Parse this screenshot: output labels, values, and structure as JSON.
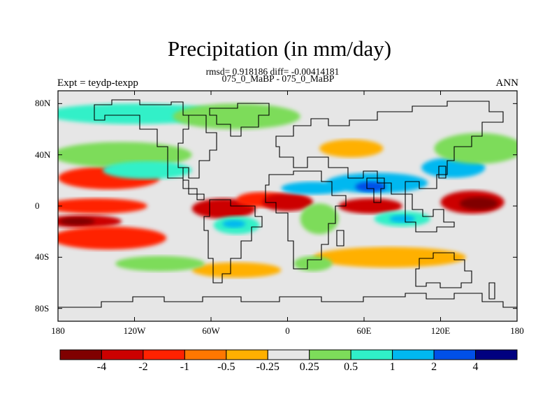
{
  "figure": {
    "title": "Precipitation (in mm/day)",
    "stats_line": "rmsd= 0.918186 diff= -0.00414181",
    "comparison": "075_0_MaBP - 075_0_MaBP",
    "left_label": "Expt = teydp-texpp",
    "right_label": "ANN"
  },
  "map": {
    "lat_ticks": [
      {
        "value": 80,
        "label": "80N"
      },
      {
        "value": 40,
        "label": "40N"
      },
      {
        "value": 0,
        "label": "0"
      },
      {
        "value": -40,
        "label": "40S"
      },
      {
        "value": -80,
        "label": "80S"
      }
    ],
    "lon_ticks": [
      {
        "value": -180,
        "label": "180"
      },
      {
        "value": -120,
        "label": "120W"
      },
      {
        "value": -60,
        "label": "60W"
      },
      {
        "value": 0,
        "label": "0"
      },
      {
        "value": 60,
        "label": "60E"
      },
      {
        "value": 120,
        "label": "120E"
      },
      {
        "value": 180,
        "label": "180"
      }
    ],
    "background_color": "#e6e6e6",
    "fields": [
      {
        "name": "tropical-pacific-wet",
        "lon": -150,
        "lat": 0,
        "rlon": 40,
        "rlat": 6,
        "level": -1
      },
      {
        "name": "tropical-pacific-dry",
        "lon": -160,
        "lat": -12,
        "rlon": 30,
        "rlat": 5,
        "level": -3
      },
      {
        "name": "tropical-pacific-dry-core",
        "lon": -165,
        "lat": -12,
        "rlon": 14,
        "rlat": 3,
        "level": -4
      },
      {
        "name": "south-pacific-orange",
        "lon": -140,
        "lat": -25,
        "rlon": 45,
        "rlat": 9,
        "level": -1
      },
      {
        "name": "north-pacific-orange",
        "lon": -140,
        "lat": 22,
        "rlon": 40,
        "rlat": 9,
        "level": -1
      },
      {
        "name": "north-pacific-green",
        "lon": -130,
        "lat": 40,
        "rlon": 55,
        "rlat": 10,
        "level": 0.3
      },
      {
        "name": "north-pacific-cyan",
        "lon": -110,
        "lat": 28,
        "rlon": 35,
        "rlat": 7,
        "level": 0.7
      },
      {
        "name": "arctic-cyan",
        "lon": -120,
        "lat": 72,
        "rlon": 70,
        "rlat": 8,
        "level": 0.7
      },
      {
        "name": "arctic-green",
        "lon": -40,
        "lat": 70,
        "rlon": 50,
        "rlat": 10,
        "level": 0.3
      },
      {
        "name": "south-america-wet",
        "lon": -50,
        "lat": -2,
        "rlon": 25,
        "rlat": 8,
        "level": -2
      },
      {
        "name": "south-america-cyan",
        "lon": -40,
        "lat": -15,
        "rlon": 18,
        "rlat": 7,
        "level": 0.7
      },
      {
        "name": "south-america-blue",
        "lon": -42,
        "lat": -14,
        "rlon": 9,
        "rlat": 3,
        "level": 1.5
      },
      {
        "name": "atlantic-orange",
        "lon": -20,
        "lat": 5,
        "rlon": 20,
        "rlat": 6,
        "level": -1.5
      },
      {
        "name": "africa-red",
        "lon": 0,
        "lat": 3,
        "rlon": 20,
        "rlat": 7,
        "level": -3
      },
      {
        "name": "sahel-blue",
        "lon": 20,
        "lat": 14,
        "rlon": 25,
        "rlat": 5,
        "level": 1.5
      },
      {
        "name": "africa-green",
        "lon": 25,
        "lat": -10,
        "rlon": 15,
        "rlat": 12,
        "level": 0.3
      },
      {
        "name": "indian-red",
        "lon": 65,
        "lat": 0,
        "rlon": 25,
        "rlat": 6,
        "level": -3
      },
      {
        "name": "asia-blue",
        "lon": 70,
        "lat": 18,
        "rlon": 40,
        "rlat": 8,
        "level": 1.5
      },
      {
        "name": "asia-deep-blue",
        "lon": 65,
        "lat": 15,
        "rlon": 12,
        "rlat": 4,
        "level": 3
      },
      {
        "name": "indian-cyan",
        "lon": 90,
        "lat": -10,
        "rlon": 22,
        "rlat": 6,
        "level": 0.7
      },
      {
        "name": "indian-blue",
        "lon": 90,
        "lat": -10,
        "rlon": 10,
        "rlat": 3,
        "level": 1.5
      },
      {
        "name": "west-pacific-red",
        "lon": 145,
        "lat": 3,
        "rlon": 25,
        "rlat": 9,
        "level": -3
      },
      {
        "name": "west-pacific-core",
        "lon": 150,
        "lat": 2,
        "rlon": 15,
        "rlat": 5,
        "level": -4
      },
      {
        "name": "nw-pacific-blue",
        "lon": 130,
        "lat": 30,
        "rlon": 25,
        "rlat": 8,
        "level": 1.5
      },
      {
        "name": "nw-pacific-green",
        "lon": 150,
        "lat": 45,
        "rlon": 35,
        "rlat": 12,
        "level": 0.3
      },
      {
        "name": "siberia-orange",
        "lon": 50,
        "lat": 45,
        "rlon": 25,
        "rlat": 7,
        "level": -0.3
      },
      {
        "name": "australia-orange",
        "lon": 80,
        "lat": -40,
        "rlon": 60,
        "rlat": 8,
        "level": -0.3
      },
      {
        "name": "south-ocean-green",
        "lon": 20,
        "lat": -45,
        "rlon": 15,
        "rlat": 6,
        "level": 0.3
      },
      {
        "name": "south-ocean-orange",
        "lon": -40,
        "lat": -50,
        "rlon": 35,
        "rlat": 6,
        "level": -0.3
      },
      {
        "name": "south-pacific-green",
        "lon": -100,
        "lat": -45,
        "rlon": 35,
        "rlat": 6,
        "level": 0.3
      }
    ]
  },
  "colorbar": {
    "boxes": [
      {
        "color": "#800000"
      },
      {
        "color": "#cc0000"
      },
      {
        "color": "#ff2200"
      },
      {
        "color": "#ff7700"
      },
      {
        "color": "#ffb000"
      },
      {
        "color": "#e6e6e6"
      },
      {
        "color": "#7ddc5a"
      },
      {
        "color": "#30f0c8"
      },
      {
        "color": "#00b8f0"
      },
      {
        "color": "#0050e8"
      },
      {
        "color": "#000080"
      }
    ],
    "labels": [
      "-4",
      "-2",
      "-1",
      "-0.5",
      "-0.25",
      "0.25",
      "0.5",
      "1",
      "2",
      "4"
    ]
  }
}
